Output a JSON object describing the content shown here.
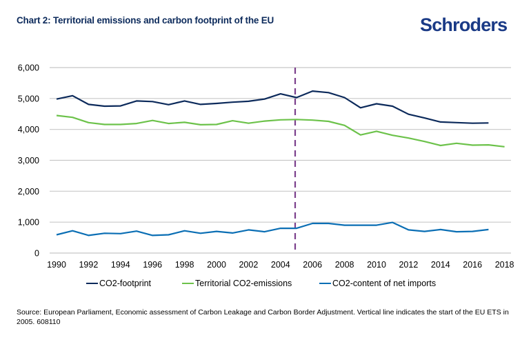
{
  "header": {
    "title": "Chart 2: Territorial emissions and carbon footprint of the EU",
    "logo": "Schroders"
  },
  "footer": {
    "source": "Source: European Parliament, Economic assessment of Carbon Leakage and Carbon Border Adjustment. Vertical line indicates the start of the EU ETS in 2005. 608110"
  },
  "colors": {
    "footprint": "#0c2a5b",
    "territorial": "#6cc24a",
    "imports": "#0a6eb4",
    "marker_line": "#7b3f8c",
    "grid": "#c8c8c8"
  },
  "chart_data": {
    "type": "line",
    "title": "Chart 2: Territorial emissions and carbon footprint of the EU",
    "xlabel": "",
    "ylabel": "",
    "x": [
      1990,
      1991,
      1992,
      1993,
      1994,
      1995,
      1996,
      1997,
      1998,
      1999,
      2000,
      2001,
      2002,
      2003,
      2004,
      2005,
      2006,
      2007,
      2008,
      2009,
      2010,
      2011,
      2012,
      2013,
      2014,
      2015,
      2016,
      2017,
      2018
    ],
    "xticks": [
      "1990",
      "1992",
      "1994",
      "1996",
      "1998",
      "2000",
      "2002",
      "2004",
      "2006",
      "2008",
      "2010",
      "2012",
      "2014",
      "2016",
      "2018"
    ],
    "yticks": [
      "0",
      "1,000",
      "2,000",
      "3,000",
      "4,000",
      "5,000",
      "6,000"
    ],
    "ylim": [
      0,
      6000
    ],
    "xlim": [
      1990,
      2018
    ],
    "grid": true,
    "legend_position": "bottom",
    "annotations": [
      {
        "type": "vertical-dashed-line",
        "x": 2005,
        "meaning": "start of EU ETS"
      }
    ],
    "series": [
      {
        "name": "CO2-footprint",
        "key": "footprint",
        "values": [
          4980,
          5090,
          4810,
          4750,
          4760,
          4920,
          4900,
          4800,
          4920,
          4810,
          4840,
          4880,
          4910,
          4980,
          5150,
          5030,
          5240,
          5190,
          5030,
          4700,
          4830,
          4750,
          4490,
          4370,
          4240,
          4220,
          4200,
          4210,
          null
        ]
      },
      {
        "name": "Territorial CO2-emissions",
        "key": "territorial",
        "values": [
          4450,
          4390,
          4220,
          4160,
          4160,
          4190,
          4290,
          4190,
          4230,
          4150,
          4160,
          4280,
          4200,
          4270,
          4310,
          4320,
          4300,
          4260,
          4130,
          3820,
          3940,
          3810,
          3720,
          3610,
          3480,
          3550,
          3490,
          3500,
          3440
        ]
      },
      {
        "name": "CO2-content of net imports",
        "key": "imports",
        "values": [
          590,
          720,
          570,
          640,
          630,
          710,
          570,
          590,
          720,
          640,
          700,
          650,
          750,
          690,
          800,
          800,
          960,
          960,
          900,
          900,
          900,
          990,
          750,
          700,
          760,
          690,
          700,
          760,
          null
        ]
      }
    ]
  }
}
